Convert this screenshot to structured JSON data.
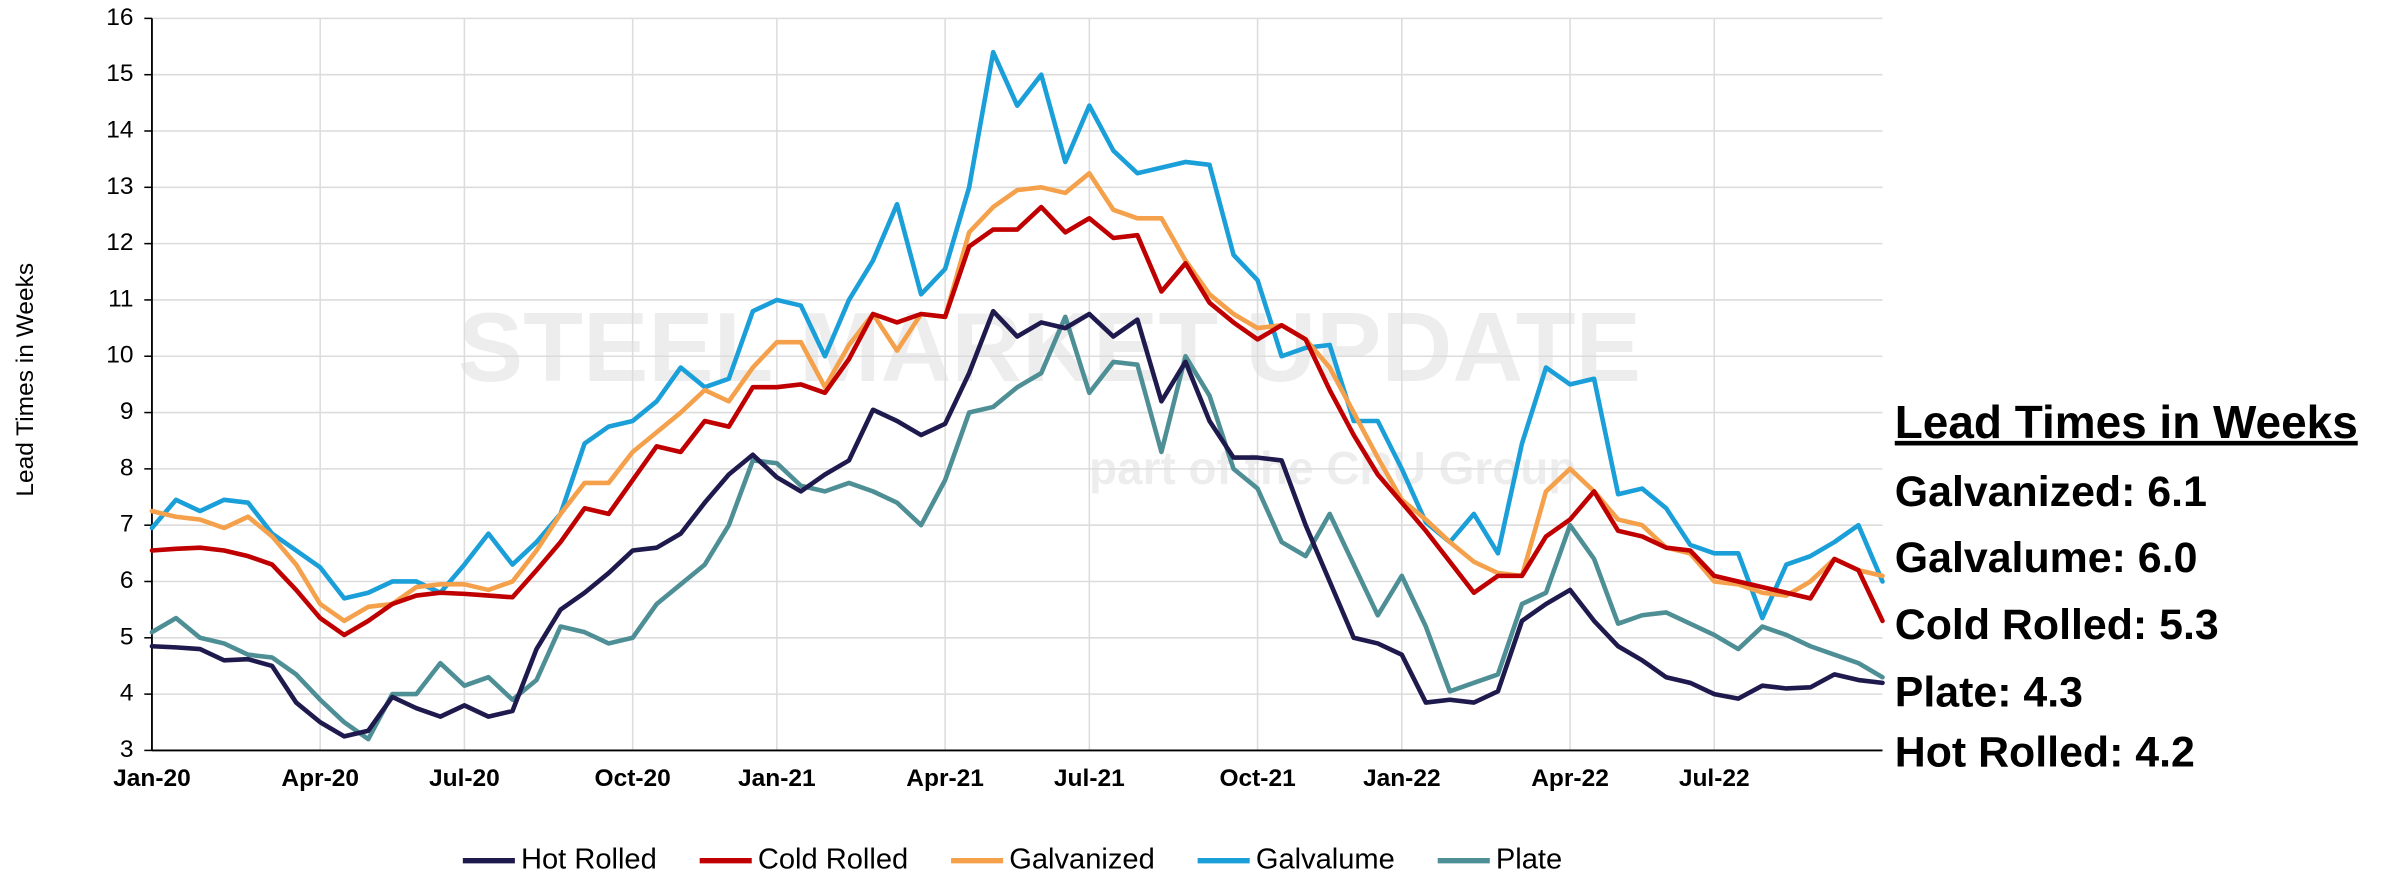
{
  "chart_data": {
    "type": "line",
    "y_label": "Lead Times in Weeks",
    "categories": [
      "Jan-20",
      null,
      null,
      null,
      null,
      null,
      null,
      "Apr-20",
      null,
      null,
      null,
      null,
      null,
      "Jul-20",
      null,
      null,
      null,
      null,
      null,
      null,
      "Oct-20",
      null,
      null,
      null,
      null,
      null,
      "Jan-21",
      null,
      null,
      null,
      null,
      null,
      null,
      "Apr-21",
      null,
      null,
      null,
      null,
      null,
      "Jul-21",
      null,
      null,
      null,
      null,
      null,
      null,
      "Oct-21",
      null,
      null,
      null,
      null,
      null,
      "Jan-22",
      null,
      null,
      null,
      null,
      null,
      null,
      "Apr-22",
      null,
      null,
      null,
      null,
      null,
      "Jul-22",
      null,
      null,
      null,
      null,
      null,
      null,
      null
    ],
    "series": [
      {
        "name": "Hot Rolled",
        "color": "#1f1a4d",
        "values": [
          4.85,
          4.83,
          4.8,
          4.6,
          4.62,
          4.5,
          3.85,
          3.5,
          3.25,
          3.35,
          3.95,
          3.75,
          3.6,
          3.8,
          3.6,
          3.7,
          4.8,
          5.5,
          5.8,
          6.15,
          6.55,
          6.6,
          6.85,
          7.4,
          7.9,
          8.25,
          7.85,
          7.6,
          7.9,
          8.15,
          9.05,
          8.85,
          8.6,
          8.8,
          9.7,
          10.8,
          10.35,
          10.6,
          10.5,
          10.75,
          10.35,
          10.65,
          9.2,
          9.9,
          8.85,
          8.2,
          8.2,
          8.15,
          7.0,
          6.0,
          5.0,
          4.9,
          4.7,
          3.85,
          3.9,
          3.85,
          4.05,
          5.3,
          5.6,
          5.85,
          5.3,
          4.85,
          4.6,
          4.3,
          4.2,
          4.0,
          3.92,
          4.15,
          4.1,
          4.12,
          4.35,
          4.25,
          4.2
        ]
      },
      {
        "name": "Cold Rolled",
        "color": "#c00000",
        "values": [
          6.55,
          6.58,
          6.6,
          6.55,
          6.45,
          6.3,
          5.85,
          5.35,
          5.05,
          5.3,
          5.6,
          5.75,
          5.8,
          5.78,
          5.75,
          5.72,
          6.2,
          6.7,
          7.3,
          7.2,
          7.8,
          8.4,
          8.3,
          8.85,
          8.75,
          9.45,
          9.45,
          9.5,
          9.35,
          9.95,
          10.75,
          10.6,
          10.75,
          10.7,
          11.95,
          12.25,
          12.25,
          12.65,
          12.2,
          12.45,
          12.1,
          12.15,
          11.15,
          11.65,
          10.95,
          10.6,
          10.3,
          10.55,
          10.3,
          9.4,
          8.6,
          7.9,
          7.4,
          6.9,
          6.35,
          5.8,
          6.1,
          6.1,
          6.8,
          7.1,
          7.6,
          6.9,
          6.8,
          6.6,
          6.55,
          6.1,
          6.0,
          5.9,
          5.8,
          5.7,
          6.4,
          6.2,
          5.3
        ]
      },
      {
        "name": "Galvanized",
        "color": "#f5a04a",
        "values": [
          7.25,
          7.15,
          7.1,
          6.95,
          7.15,
          6.8,
          6.3,
          5.6,
          5.3,
          5.55,
          5.6,
          5.9,
          5.95,
          5.95,
          5.85,
          6.0,
          6.55,
          7.2,
          7.75,
          7.75,
          8.3,
          8.65,
          9.0,
          9.4,
          9.2,
          9.8,
          10.25,
          10.25,
          9.45,
          10.2,
          10.75,
          10.1,
          10.75,
          10.7,
          12.2,
          12.65,
          12.95,
          13.0,
          12.9,
          13.25,
          12.6,
          12.45,
          12.45,
          11.7,
          11.1,
          10.75,
          10.5,
          10.55,
          10.3,
          9.8,
          9.0,
          8.2,
          7.45,
          7.1,
          6.7,
          6.35,
          6.15,
          6.1,
          7.6,
          8.0,
          7.6,
          7.1,
          7.0,
          6.6,
          6.5,
          6.0,
          5.95,
          5.8,
          5.75,
          6.0,
          6.4,
          6.2,
          6.1
        ]
      },
      {
        "name": "Galvalume",
        "color": "#1a9fd9",
        "values": [
          6.95,
          7.45,
          7.25,
          7.45,
          7.4,
          6.85,
          6.55,
          6.25,
          5.7,
          5.8,
          6.0,
          6.0,
          5.8,
          6.3,
          6.85,
          6.3,
          6.7,
          7.2,
          8.45,
          8.75,
          8.85,
          9.2,
          9.8,
          9.45,
          9.6,
          10.8,
          11.0,
          10.9,
          10.0,
          11.0,
          11.7,
          12.7,
          11.1,
          11.55,
          13.0,
          15.4,
          14.45,
          15.0,
          13.45,
          14.45,
          13.65,
          13.25,
          13.35,
          13.45,
          13.4,
          11.8,
          11.35,
          10.0,
          10.15,
          10.2,
          8.85,
          8.85,
          8.0,
          7.05,
          6.7,
          7.2,
          6.5,
          8.45,
          9.8,
          9.5,
          9.6,
          7.55,
          7.65,
          7.3,
          6.65,
          6.5,
          6.5,
          5.35,
          6.3,
          6.45,
          6.7,
          7.0,
          6.0
        ]
      },
      {
        "name": "Plate",
        "color": "#4e8f96",
        "values": [
          5.1,
          5.35,
          5.0,
          4.9,
          4.7,
          4.65,
          4.35,
          3.9,
          3.5,
          3.2,
          4.0,
          4.0,
          4.55,
          4.15,
          4.3,
          3.9,
          4.25,
          5.2,
          5.1,
          4.9,
          5.0,
          5.6,
          5.95,
          6.3,
          7.0,
          8.15,
          8.1,
          7.7,
          7.6,
          7.75,
          7.6,
          7.4,
          7.0,
          7.8,
          9.0,
          9.1,
          9.45,
          9.7,
          10.7,
          9.35,
          9.9,
          9.85,
          8.3,
          10.0,
          9.3,
          8.0,
          7.65,
          6.7,
          6.45,
          7.2,
          6.3,
          5.4,
          6.1,
          5.2,
          4.05,
          4.2,
          4.35,
          5.6,
          5.8,
          7.0,
          6.4,
          5.25,
          5.4,
          5.45,
          5.25,
          5.05,
          4.8,
          5.2,
          5.05,
          4.85,
          4.7,
          4.55,
          4.3
        ]
      }
    ],
    "ylim": [
      3,
      16
    ],
    "yticks": [
      3,
      4,
      5,
      6,
      7,
      8,
      9,
      10,
      11,
      12,
      13,
      14,
      15,
      16
    ],
    "grid": true,
    "legend": "bottom",
    "annotation_title": "Lead Times in Weeks",
    "annotations": [
      {
        "text": "Galvanized: 6.1",
        "color": "#f5a04a"
      },
      {
        "text": "Galvalume: 6.0",
        "color": "#1a9fd9"
      },
      {
        "text": "Cold Rolled: 5.3",
        "color": "#c00000"
      },
      {
        "text": "Plate: 4.3",
        "color": "#4e8f96"
      },
      {
        "text": "Hot Rolled: 4.2",
        "color": "#1f1a4d"
      }
    ],
    "watermark": [
      "STEEL MARKET UPDATE",
      "part of the CRU Group"
    ]
  }
}
